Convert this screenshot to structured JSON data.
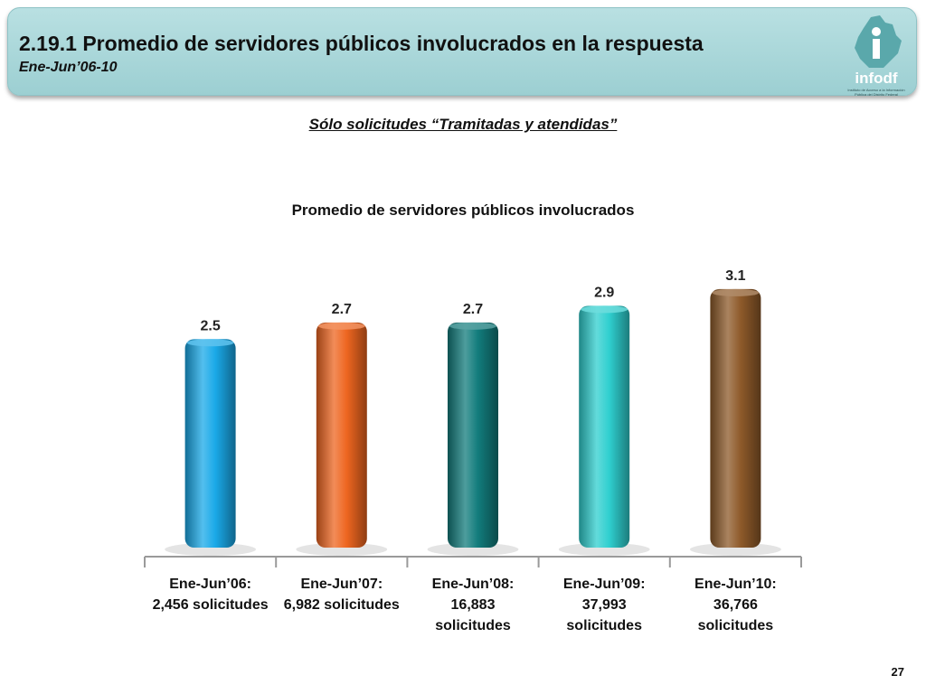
{
  "header": {
    "title": "2.19.1 Promedio de servidores públicos involucrados en la respuesta",
    "subtitle": "Ene-Jun’06-10",
    "logo_text": "infodf",
    "logo_tag": "Instituto de Acceso a la Información Pública del Distrito Federal"
  },
  "note": "Sólo solicitudes “Tramitadas y atendidas”",
  "page_number": "27",
  "chart_data": {
    "type": "bar",
    "title": "Promedio de servidores públicos involucrados",
    "xlabel": "",
    "ylabel": "",
    "ylim": [
      0,
      3.5
    ],
    "grid": false,
    "categories": [
      [
        "Ene-Jun’06:",
        "2,456 solicitudes"
      ],
      [
        "Ene-Jun’07:",
        "6,982 solicitudes"
      ],
      [
        "Ene-Jun’08:",
        "16,883",
        "solicitudes"
      ],
      [
        "Ene-Jun’09:",
        "37,993",
        "solicitudes"
      ],
      [
        "Ene-Jun’10:",
        "36,766",
        "solicitudes"
      ]
    ],
    "values": [
      2.5,
      2.7,
      2.7,
      2.9,
      3.1
    ],
    "data_labels": [
      "2.5",
      "2.7",
      "2.7",
      "2.9",
      "3.1"
    ],
    "colors": [
      "#1aa9e8",
      "#ee6620",
      "#127c7c",
      "#2fcfcf",
      "#8e5a2a"
    ]
  }
}
